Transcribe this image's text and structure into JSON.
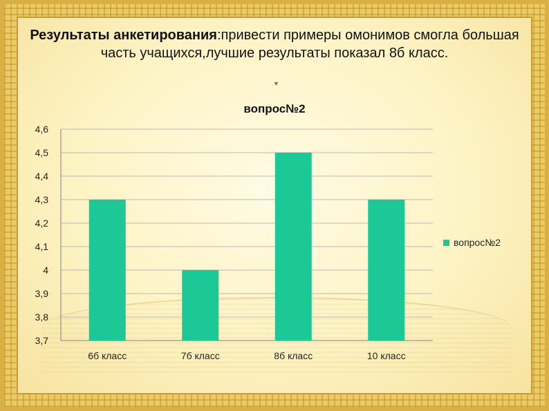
{
  "slide": {
    "title_bold": "Результаты анкетирования",
    "title_rest": ":привести примеры омонимов смогла большая часть учащихся,лучшие результаты показал 8б класс.",
    "caret": "▼"
  },
  "colors": {
    "bar": "#1cc896",
    "axis": "#808080",
    "grid": "#b8b8b8"
  },
  "chart_data": {
    "type": "bar",
    "title": "вопрос№2",
    "categories": [
      "6б класс",
      "7б класс",
      "8б класс",
      "10 класс"
    ],
    "series": [
      {
        "name": "вопрос№2",
        "values": [
          4.3,
          4.0,
          4.5,
          4.3
        ]
      }
    ],
    "yticks": [
      "3,7",
      "3,8",
      "3,9",
      "4",
      "4,1",
      "4,2",
      "4,3",
      "4,4",
      "4,5",
      "4,6"
    ],
    "ylim": [
      3.7,
      4.6
    ],
    "grid": true,
    "legend": "right"
  }
}
